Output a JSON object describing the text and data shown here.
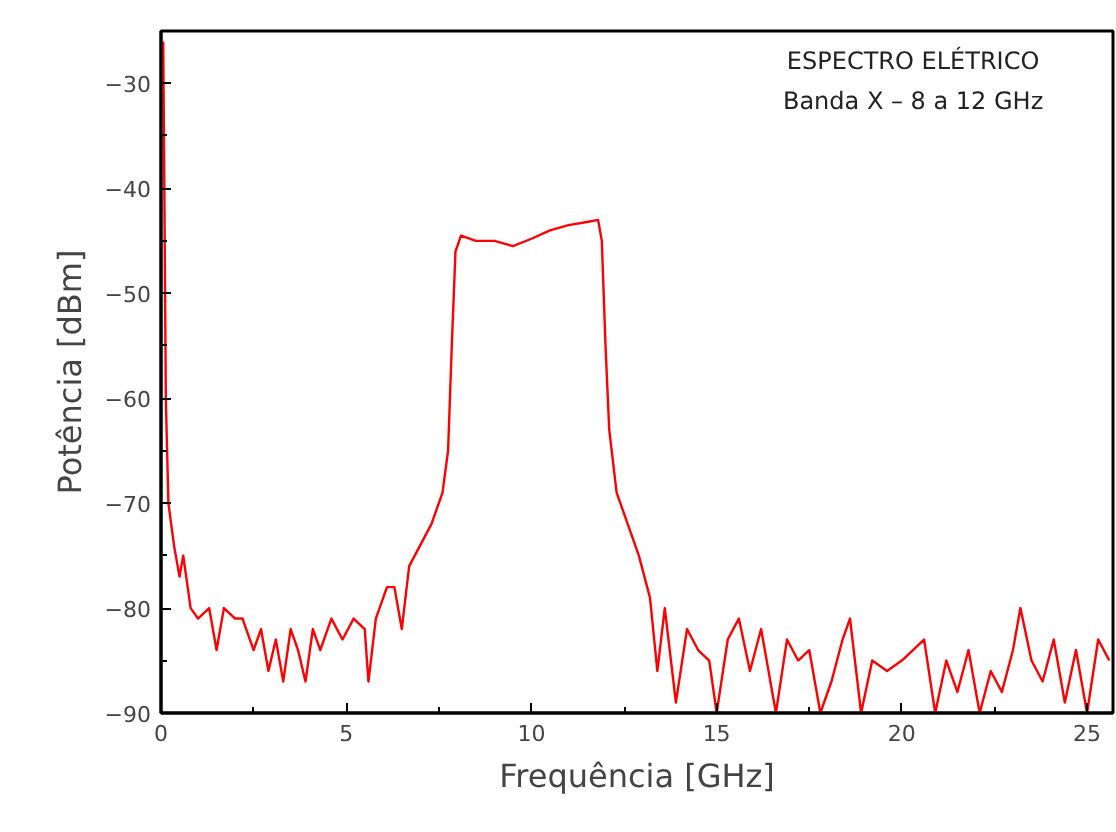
{
  "chart_data": {
    "type": "line",
    "xlabel": "Frequência [GHz]",
    "ylabel": "Potência [dBm]",
    "annotations": [
      "ESPECTRO ELÉTRICO",
      "Banda X – 8 a 12 GHz"
    ],
    "xlim": [
      0,
      25.7
    ],
    "ylim": [
      -90,
      -25
    ],
    "xticks": [
      0,
      5,
      10,
      15,
      20,
      25
    ],
    "yticks": [
      -90,
      -80,
      -70,
      -60,
      -50,
      -40,
      -30
    ],
    "grid": false,
    "marker": "none",
    "line_style": "solid",
    "series": [
      {
        "color": "#ff0000",
        "x": [
          0.06,
          0.09,
          0.13,
          0.2,
          0.35,
          0.5,
          0.6,
          0.8,
          1.0,
          1.3,
          1.5,
          1.7,
          2.0,
          2.2,
          2.5,
          2.7,
          2.9,
          3.1,
          3.3,
          3.5,
          3.7,
          3.9,
          4.1,
          4.3,
          4.6,
          4.9,
          5.2,
          5.5,
          5.6,
          5.8,
          6.1,
          6.3,
          6.5,
          6.7,
          7.0,
          7.3,
          7.6,
          7.75,
          7.85,
          7.95,
          8.1,
          8.5,
          9.0,
          9.5,
          10.0,
          10.5,
          11.0,
          11.5,
          11.8,
          11.9,
          12.0,
          12.1,
          12.3,
          12.6,
          12.9,
          13.2,
          13.4,
          13.6,
          13.9,
          14.2,
          14.5,
          14.8,
          15.0,
          15.3,
          15.6,
          15.9,
          16.2,
          16.6,
          16.9,
          17.2,
          17.5,
          17.8,
          18.1,
          18.4,
          18.6,
          18.9,
          19.2,
          19.6,
          20.0,
          20.3,
          20.6,
          20.9,
          21.2,
          21.5,
          21.8,
          22.1,
          22.4,
          22.7,
          23.0,
          23.2,
          23.5,
          23.8,
          24.1,
          24.4,
          24.7,
          25.0,
          25.3,
          25.6
        ],
        "values": [
          -26,
          -40,
          -60,
          -70,
          -74,
          -77,
          -75,
          -80,
          -81,
          -80,
          -84,
          -80,
          -81,
          -81,
          -84,
          -82,
          -86,
          -83,
          -87,
          -82,
          -84,
          -87,
          -82,
          -84,
          -81,
          -83,
          -81,
          -82,
          -87,
          -81,
          -78,
          -78,
          -82,
          -76,
          -74,
          -72,
          -69,
          -65,
          -55,
          -46,
          -44.5,
          -45,
          -45,
          -45.5,
          -44.8,
          -44,
          -43.5,
          -43.2,
          -43,
          -45,
          -55,
          -63,
          -69,
          -72,
          -75,
          -79,
          -86,
          -80,
          -89,
          -82,
          -84,
          -85,
          -90,
          -83,
          -81,
          -86,
          -82,
          -90,
          -83,
          -85,
          -84,
          -90,
          -87,
          -83,
          -81,
          -90,
          -85,
          -86,
          -85,
          -84,
          -83,
          -90,
          -85,
          -88,
          -84,
          -90,
          -86,
          -88,
          -84,
          -80,
          -85,
          -87,
          -83,
          -89,
          -84,
          -90,
          -83,
          -85
        ]
      }
    ]
  }
}
